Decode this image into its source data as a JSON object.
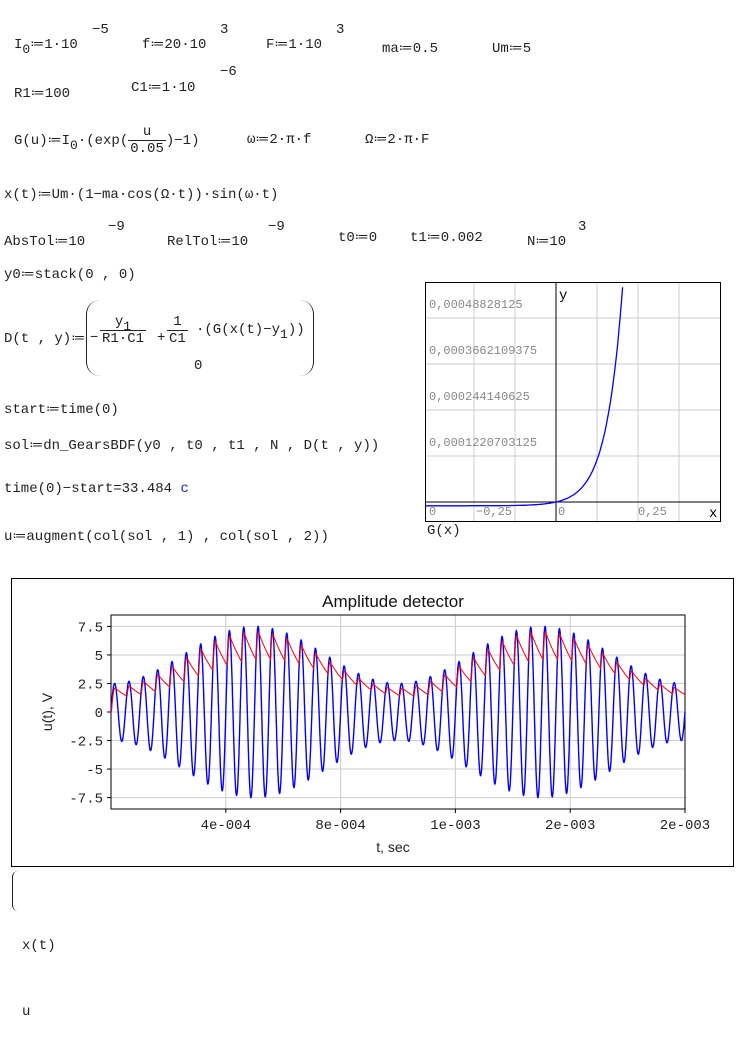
{
  "definitions": {
    "I0": {
      "lhs": "I",
      "sub": "0",
      "rhs": "≔1·10",
      "exp": "−5"
    },
    "f": {
      "text": "f≔20·10",
      "exp": "3"
    },
    "F": {
      "text": "F≔1·10",
      "exp": "3"
    },
    "ma": "ma≔0.5",
    "Um": "Um≔5",
    "R1": "R1≔100",
    "C1": {
      "text": "C1≔1·10",
      "exp": "−6"
    },
    "G": {
      "lhs": "G(u)≔I",
      "sub": "0",
      "mid": "·(exp(",
      "num": "u",
      "den": "0.05",
      "tail": ")−1)"
    },
    "omega": "ω≔2·π·f",
    "Omega": "Ω≔2·π·F",
    "x": "x(t)≔Um·(1−ma·cos(Ω·t))·sin(ω·t)",
    "AbsTol": {
      "text": "AbsTol≔10",
      "exp": "−9"
    },
    "RelTol": {
      "text": "RelTol≔10",
      "exp": "−9"
    },
    "t0": "t0≔0",
    "t1": "t1≔0.002",
    "N": {
      "text": "N≔10",
      "exp": "3"
    },
    "y0": "y0≔stack(0 , 0)",
    "D": {
      "lhs": "D(t , y)≔",
      "minus": "−",
      "num1": "y",
      "sub1": "1",
      "den1": "R1·C1",
      "plus": "+",
      "num2": "1",
      "den2": "C1",
      "g": "·(G(x(t)−y",
      "sub2": "1",
      "gclose": "))",
      "row2": "0"
    },
    "start": "start≔time(0)",
    "sol": "sol≔dn_GearsBDF(y0 , t0 , t1 , N , D(t , y))",
    "elapsed": "time(0)−start=33.484",
    "elapsed_unit": "c",
    "u": "u≔augment(col(sol , 1) , col(sol , 2))"
  },
  "gplot": {
    "y_axis_label": "y",
    "x_axis_label": "x",
    "y_ticks": [
      "0,0001220703125",
      "0,000244140625",
      "0,0003662109375",
      "0,00048828125"
    ],
    "x_ticks": [
      "0",
      "−0,25",
      "0",
      "0,25"
    ],
    "caption_fn": "G",
    "caption_arg": "(x)",
    "curve_color": "#0000ff"
  },
  "chart_data": {
    "type": "line",
    "title": "Amplitude detector",
    "xlabel": "t, sec",
    "ylabel": "u(t), V",
    "xlim": [
      0,
      0.002
    ],
    "ylim": [
      -8.5,
      8.5
    ],
    "x_ticks": [
      "4e-004",
      "8e-004",
      "1e-003",
      "2e-003",
      "2e-003"
    ],
    "y_ticks": [
      "7.5",
      "5",
      "2.5",
      "0",
      "-2.5",
      "-5",
      "-7.5"
    ],
    "grid": true,
    "series": [
      {
        "expr": "x(t)",
        "color": "#0000ff"
      },
      {
        "expr": "u",
        "color": "#ff0000"
      }
    ]
  },
  "legend": {
    "items": [
      "x(t)",
      "u"
    ]
  }
}
